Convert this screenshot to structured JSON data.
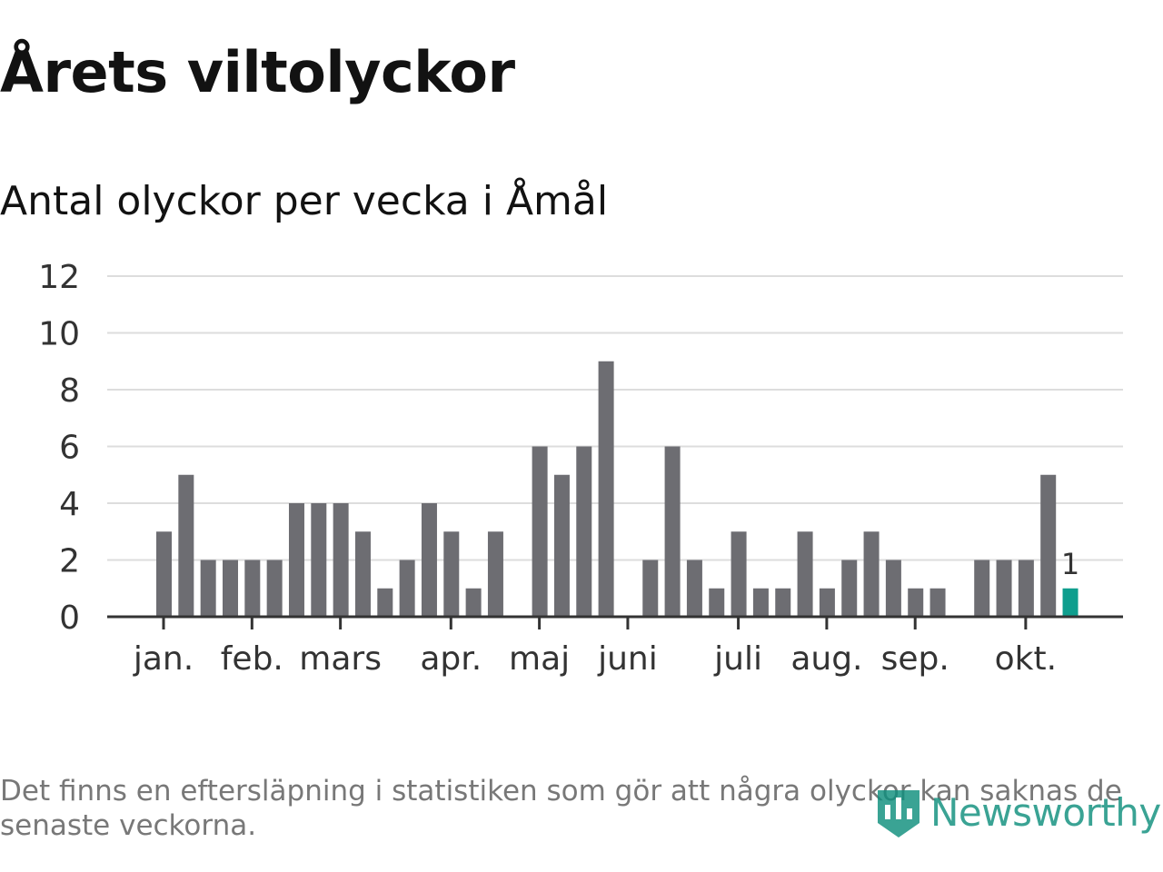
{
  "title": "Årets viltolyckor",
  "subtitle": "Antal olyckor per vecka i Åmål",
  "footnote": "Det finns en eftersläpning i statistiken som gör att några olyckor kan saknas de senaste veckorna.",
  "brand": {
    "name": "Newsworthy",
    "color": "#0f8f7d",
    "icon": "newsworthy-logo-icon"
  },
  "colors": {
    "bar": "#6d6d72",
    "highlight": "#0f9e8e",
    "grid": "#dddddd",
    "axis": "#333333",
    "text": "#333333"
  },
  "chart_data": {
    "type": "bar",
    "title": "Antal olyckor per vecka i Åmål",
    "xlabel": "",
    "ylabel": "",
    "ylim": [
      0,
      12
    ],
    "yticks": [
      "0",
      "2",
      "4",
      "6",
      "8",
      "10",
      "12"
    ],
    "grid": true,
    "legend": "none",
    "weeks": [
      1,
      2,
      3,
      4,
      5,
      6,
      7,
      8,
      9,
      10,
      11,
      12,
      13,
      14,
      15,
      16,
      17,
      18,
      19,
      20,
      21,
      22,
      23,
      24,
      25,
      26,
      27,
      28,
      29,
      30,
      31,
      32,
      33,
      34,
      35,
      36,
      37,
      38,
      39,
      40,
      41,
      42,
      43
    ],
    "values": [
      3,
      5,
      2,
      2,
      2,
      2,
      4,
      4,
      4,
      3,
      1,
      2,
      4,
      3,
      1,
      3,
      0,
      6,
      5,
      6,
      9,
      0,
      2,
      6,
      2,
      1,
      3,
      1,
      1,
      3,
      1,
      2,
      3,
      2,
      1,
      1,
      0,
      2,
      2,
      2,
      5,
      1,
      0
    ],
    "highlight": {
      "week": 42,
      "label": "1"
    },
    "month_labels": [
      {
        "label": "jan.",
        "week": 1
      },
      {
        "label": "feb.",
        "week": 5
      },
      {
        "label": "mars",
        "week": 9
      },
      {
        "label": "apr.",
        "week": 14
      },
      {
        "label": "maj",
        "week": 18
      },
      {
        "label": "juni",
        "week": 22
      },
      {
        "label": "juli",
        "week": 27
      },
      {
        "label": "aug.",
        "week": 31
      },
      {
        "label": "sep.",
        "week": 35
      },
      {
        "label": "okt.",
        "week": 40
      }
    ]
  }
}
